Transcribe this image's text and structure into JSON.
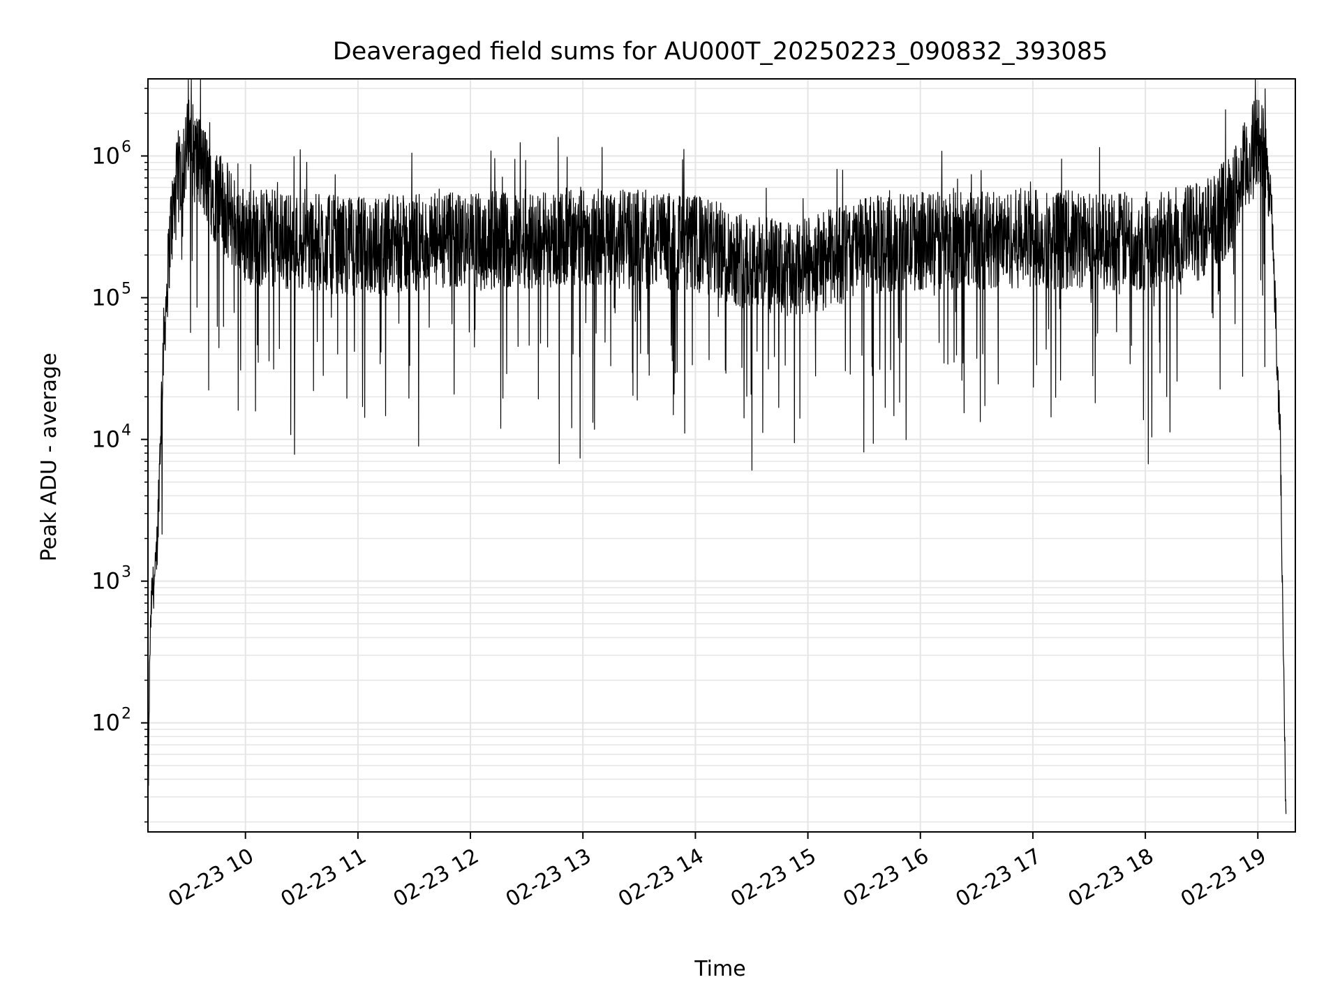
{
  "chart_data": {
    "type": "line",
    "title": "Deaveraged field sums for AU000T_20250223_090832_393085",
    "xlabel": "Time",
    "ylabel": "Peak ADU - average",
    "yscale": "log",
    "ylim": [
      17,
      3500000
    ],
    "xlim": [
      "2025-02-23T09:08",
      "2025-02-23T19:20"
    ],
    "grid": true,
    "grid_minor": true,
    "line_color": "#000000",
    "grid_color": "#e5e5e5",
    "x_ticks": [
      {
        "t": "2025-02-23T10:00",
        "label": "02-23 10"
      },
      {
        "t": "2025-02-23T11:00",
        "label": "02-23 11"
      },
      {
        "t": "2025-02-23T12:00",
        "label": "02-23 12"
      },
      {
        "t": "2025-02-23T13:00",
        "label": "02-23 13"
      },
      {
        "t": "2025-02-23T14:00",
        "label": "02-23 14"
      },
      {
        "t": "2025-02-23T15:00",
        "label": "02-23 15"
      },
      {
        "t": "2025-02-23T16:00",
        "label": "02-23 16"
      },
      {
        "t": "2025-02-23T17:00",
        "label": "02-23 17"
      },
      {
        "t": "2025-02-23T18:00",
        "label": "02-23 18"
      },
      {
        "t": "2025-02-23T19:00",
        "label": "02-23 19"
      }
    ],
    "y_ticks": [
      {
        "value": 100,
        "base": "10",
        "exp": "2"
      },
      {
        "value": 1000,
        "base": "10",
        "exp": "3"
      },
      {
        "value": 10000,
        "base": "10",
        "exp": "4"
      },
      {
        "value": 100000,
        "base": "10",
        "exp": "5"
      },
      {
        "value": 1000000,
        "base": "10",
        "exp": "6"
      }
    ],
    "series": [
      {
        "trend": [
          {
            "t": "2025-02-23T09:08",
            "y": 20
          },
          {
            "t": "2025-02-23T09:09",
            "y": 300
          },
          {
            "t": "2025-02-23T09:10",
            "y": 800
          },
          {
            "t": "2025-02-23T09:12",
            "y": 1100
          },
          {
            "t": "2025-02-23T09:13",
            "y": 2000
          },
          {
            "t": "2025-02-23T09:16",
            "y": 40000
          },
          {
            "t": "2025-02-23T09:20",
            "y": 300000
          },
          {
            "t": "2025-02-23T09:25",
            "y": 800000
          },
          {
            "t": "2025-02-23T09:30",
            "y": 1200000
          },
          {
            "t": "2025-02-23T09:35",
            "y": 900000
          },
          {
            "t": "2025-02-23T09:45",
            "y": 500000
          },
          {
            "t": "2025-02-23T10:00",
            "y": 270000
          },
          {
            "t": "2025-02-23T11:00",
            "y": 230000
          },
          {
            "t": "2025-02-23T12:00",
            "y": 250000
          },
          {
            "t": "2025-02-23T13:00",
            "y": 270000
          },
          {
            "t": "2025-02-23T14:00",
            "y": 240000
          },
          {
            "t": "2025-02-23T14:50",
            "y": 150000
          },
          {
            "t": "2025-02-23T15:30",
            "y": 230000
          },
          {
            "t": "2025-02-23T16:00",
            "y": 250000
          },
          {
            "t": "2025-02-23T17:00",
            "y": 260000
          },
          {
            "t": "2025-02-23T18:00",
            "y": 250000
          },
          {
            "t": "2025-02-23T18:30",
            "y": 300000
          },
          {
            "t": "2025-02-23T18:45",
            "y": 450000
          },
          {
            "t": "2025-02-23T18:55",
            "y": 900000
          },
          {
            "t": "2025-02-23T19:00",
            "y": 1300000
          },
          {
            "t": "2025-02-23T19:03",
            "y": 1200000
          },
          {
            "t": "2025-02-23T19:07",
            "y": 500000
          },
          {
            "t": "2025-02-23T19:12",
            "y": 10000
          },
          {
            "t": "2025-02-23T19:15",
            "y": 18
          }
        ],
        "noise_amplitude_decades": 0.35,
        "deep_dip_probability": 0.04
      }
    ]
  }
}
